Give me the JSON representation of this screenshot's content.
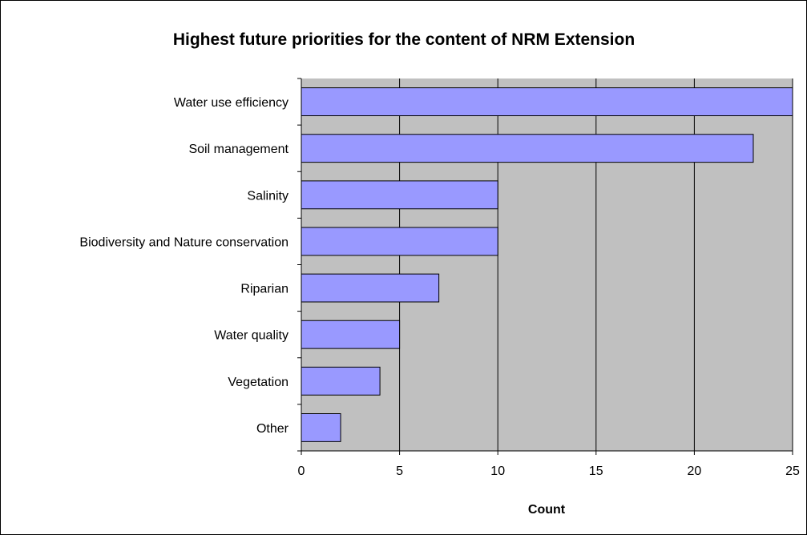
{
  "chart_data": {
    "type": "bar",
    "orientation": "horizontal",
    "title": "Highest future priorities for the content of NRM Extension",
    "xlabel": "Count",
    "ylabel": "",
    "categories": [
      "Water use efficiency",
      "Soil management",
      "Salinity",
      "Biodiversity and Nature conservation",
      "Riparian",
      "Water quality",
      "Vegetation",
      "Other"
    ],
    "values": [
      25,
      23,
      10,
      10,
      7,
      5,
      4,
      2
    ],
    "xlim": [
      0,
      25
    ],
    "xticks": [
      "0",
      "5",
      "10",
      "15",
      "20",
      "25"
    ],
    "grid": true,
    "legend": "none",
    "colors": {
      "bar_fill": "#9999ff",
      "bar_stroke": "#000000",
      "plot_background": "#c0c0c0",
      "gridline": "#000000"
    }
  }
}
